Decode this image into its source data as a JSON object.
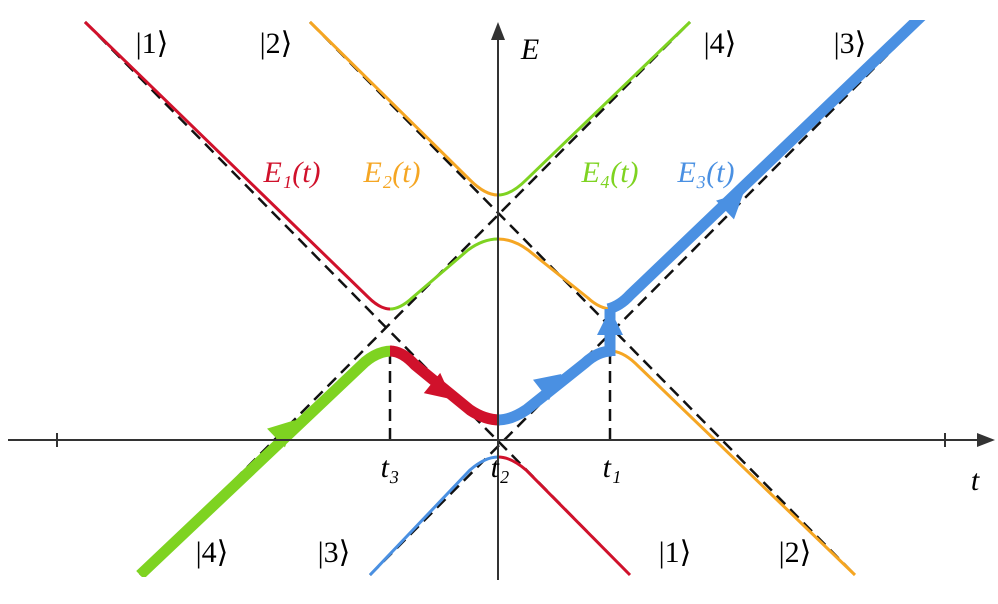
{
  "top_kets": [
    "|1⟩",
    "|2⟩",
    "|4⟩",
    "|3⟩"
  ],
  "axes": {
    "vertical": "E",
    "horizontal": "t"
  },
  "energy_labels": [
    "E₁(t)",
    "E₂(t)",
    "E₄(t)",
    "E₃(t)"
  ],
  "crossing_times": [
    "t₃",
    "t₂",
    "t₁"
  ],
  "bottom_kets": [
    "|4⟩",
    "|3⟩",
    "|1⟩",
    "|2⟩"
  ]
}
